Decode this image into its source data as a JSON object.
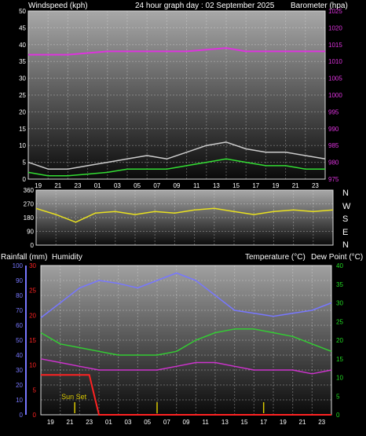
{
  "colors": {
    "wind_avg": "#33dd33",
    "wind_gust": "#cccccc",
    "baro": "#dd33dd",
    "direction": "#e8e020",
    "humidity": "#7777ff",
    "rainfall": "#ff2222",
    "temperature": "#33cc33",
    "dewpoint": "#cc33cc",
    "right_axis": "#22dd22",
    "event": "#d9c800",
    "text": "#ffffff"
  },
  "chart_data": [
    {
      "type": "line",
      "title": "24 hour graph day : 02 September 2025",
      "left_axis_label": "Windspeed (kph)",
      "right_axis_label": "Barometer (hpa)",
      "x_ticks": [
        "19",
        "21",
        "23",
        "01",
        "03",
        "05",
        "07",
        "09",
        "11",
        "13",
        "15",
        "17",
        "19",
        "21",
        "23"
      ],
      "y_left_ticks": [
        "0",
        "5",
        "10",
        "15",
        "20",
        "25",
        "30",
        "35",
        "40",
        "45",
        "50"
      ],
      "y_left_range": [
        0,
        50
      ],
      "y_right_ticks": [
        "975",
        "980",
        "985",
        "990",
        "995",
        "1000",
        "1005",
        "1010",
        "1015",
        "1020",
        "1025"
      ],
      "y_right_range": [
        975,
        1025
      ],
      "grid": true,
      "series": [
        {
          "key": "barometer",
          "x": [
            0,
            2,
            4,
            6,
            8,
            10,
            12,
            14,
            16,
            18,
            20,
            22,
            24,
            26,
            28,
            30
          ],
          "values": [
            1012,
            1012,
            1012,
            1012.5,
            1013,
            1013,
            1013,
            1013,
            1013,
            1013.5,
            1014,
            1013,
            1013,
            1013,
            1013,
            1013
          ]
        },
        {
          "key": "gust",
          "x": [
            0,
            2,
            4,
            6,
            8,
            10,
            12,
            14,
            16,
            18,
            20,
            22,
            24,
            26,
            28,
            30
          ],
          "values": [
            5,
            3,
            3,
            4,
            5,
            6,
            7,
            6,
            8,
            10,
            11,
            9,
            8,
            8,
            7,
            6
          ]
        },
        {
          "key": "average",
          "x": [
            0,
            2,
            4,
            6,
            8,
            10,
            12,
            14,
            16,
            18,
            20,
            22,
            24,
            26,
            28,
            30
          ],
          "values": [
            2,
            1,
            1,
            1.5,
            2,
            3,
            3,
            3,
            4,
            5,
            6,
            5,
            4,
            4,
            3,
            3
          ]
        }
      ]
    },
    {
      "type": "line",
      "x_ticks": [
        "19",
        "21",
        "23",
        "01",
        "03",
        "05",
        "07",
        "09",
        "11",
        "13",
        "15",
        "17",
        "19",
        "21",
        "23"
      ],
      "y_ticks": [
        "360",
        "270",
        "180",
        "90",
        "0"
      ],
      "y_range": [
        0,
        360
      ],
      "direction_labels": [
        "N",
        "W",
        "S",
        "E",
        "N"
      ],
      "grid": true,
      "series": [
        {
          "key": "direction",
          "x": [
            0,
            2,
            4,
            6,
            8,
            10,
            12,
            14,
            16,
            18,
            20,
            22,
            24,
            26,
            28,
            30
          ],
          "values": [
            240,
            200,
            150,
            210,
            220,
            200,
            220,
            210,
            230,
            240,
            220,
            200,
            220,
            230,
            220,
            230
          ]
        }
      ]
    },
    {
      "type": "line",
      "labels": {
        "rainfall": "Rainfall (mm)",
        "humidity": "Humidity",
        "temperature": "Temperature (°C)",
        "dewpoint": "Dew Point (°C)"
      },
      "x_ticks": [
        "19",
        "21",
        "23",
        "01",
        "03",
        "05",
        "07",
        "09",
        "11",
        "13",
        "15",
        "17",
        "19",
        "21",
        "23"
      ],
      "humidity_ticks": [
        "0",
        "10",
        "20",
        "30",
        "40",
        "50",
        "60",
        "70",
        "80",
        "90",
        "100"
      ],
      "humidity_range": [
        0,
        100
      ],
      "rain_ticks": [
        "0",
        "5",
        "10",
        "15",
        "20",
        "25",
        "30"
      ],
      "rain_range": [
        0,
        30
      ],
      "temp_ticks": [
        "0",
        "5",
        "10",
        "15",
        "20",
        "25",
        "30",
        "35",
        "40"
      ],
      "temp_range": [
        0,
        40
      ],
      "annotation": "Sun Set",
      "grid": true,
      "series": [
        {
          "key": "humidity",
          "x": [
            0,
            2,
            4,
            6,
            8,
            10,
            12,
            14,
            16,
            18,
            20,
            22,
            24,
            26,
            28,
            30
          ],
          "values": [
            65,
            75,
            85,
            90,
            88,
            85,
            90,
            95,
            90,
            80,
            70,
            68,
            66,
            68,
            70,
            75
          ]
        },
        {
          "key": "temperature",
          "x": [
            0,
            2,
            4,
            6,
            8,
            10,
            12,
            14,
            16,
            18,
            20,
            22,
            24,
            26,
            28,
            30
          ],
          "values": [
            22,
            19,
            18,
            17,
            16,
            16,
            16,
            17,
            20,
            22,
            23,
            23,
            22,
            21,
            19,
            17
          ]
        },
        {
          "key": "dewpoint",
          "x": [
            0,
            2,
            4,
            6,
            8,
            10,
            12,
            14,
            16,
            18,
            20,
            22,
            24,
            26,
            28,
            30
          ],
          "values": [
            15,
            14,
            13,
            12,
            12,
            12,
            12,
            13,
            14,
            14,
            13,
            12,
            12,
            12,
            11,
            12
          ]
        },
        {
          "key": "rainfall",
          "x": [
            0,
            5,
            6,
            30
          ],
          "values": [
            8,
            8,
            0,
            0
          ]
        }
      ],
      "event_bars_x": [
        3.5,
        12,
        23
      ]
    }
  ]
}
